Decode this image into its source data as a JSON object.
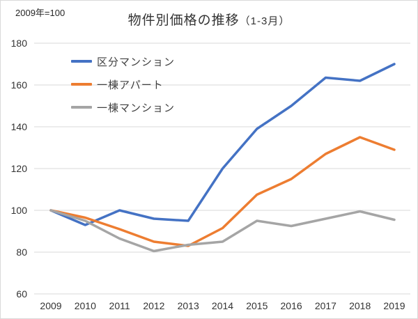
{
  "chart": {
    "note": "2009年=100",
    "title": "物件別価格の推移",
    "title_suffix": "（1-3月）"
  },
  "chart_data": {
    "type": "line",
    "title": "物件別価格の推移（1-3月）",
    "note": "2009年=100",
    "categories": [
      "2009",
      "2010",
      "2011",
      "2012",
      "2013",
      "2014",
      "2015",
      "2016",
      "2017",
      "2018",
      "2019"
    ],
    "series": [
      {
        "id": "kubun-mansion",
        "name": "区分マンション",
        "color": "#4472C4",
        "values": [
          100,
          93,
          100,
          96,
          95,
          120,
          139,
          150,
          163.5,
          162,
          170
        ]
      },
      {
        "id": "itto-apart",
        "name": "一棟アパート",
        "color": "#ED7D31",
        "values": [
          100,
          96.5,
          91,
          85,
          83,
          91.5,
          107.5,
          115,
          127,
          135,
          129
        ]
      },
      {
        "id": "itto-mansion",
        "name": "一棟マンション",
        "color": "#A5A5A5",
        "values": [
          100,
          95,
          86.5,
          80.5,
          83.5,
          85,
          95,
          92.5,
          96,
          99.5,
          95.5
        ]
      }
    ],
    "xlabel": "",
    "ylabel": "",
    "ylim": [
      60,
      180
    ],
    "ytick_step": 20,
    "grid": "horizontal",
    "gridline_color": "#D9D9D9",
    "tick_color": "#333333",
    "legend_position": "inside-top-left"
  }
}
